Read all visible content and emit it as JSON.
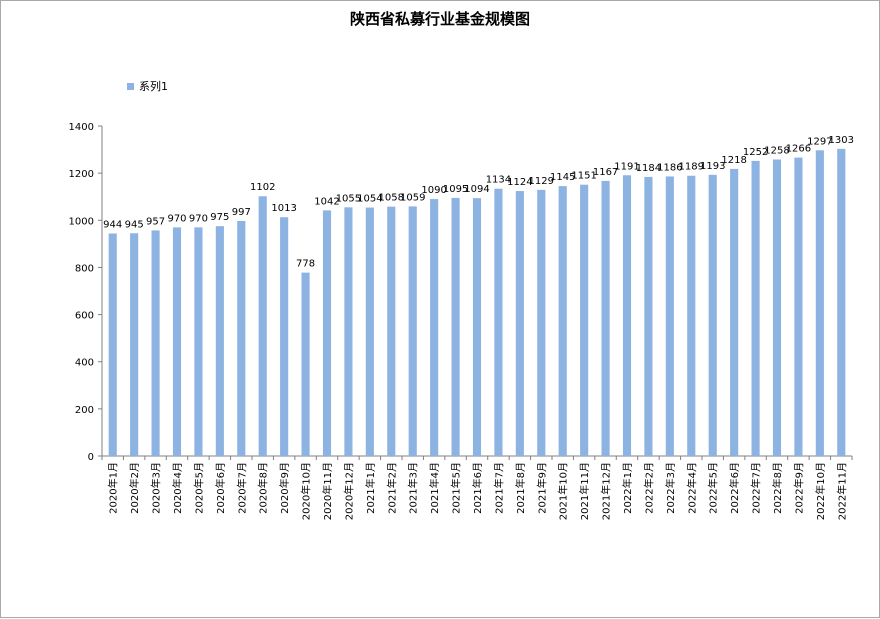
{
  "chart_data": {
    "type": "bar",
    "title": "陕西省私募行业基金规模图",
    "xlabel": "",
    "ylabel": "",
    "ylim": [
      0,
      1400
    ],
    "yticks": [
      0,
      200,
      400,
      600,
      800,
      1000,
      1200,
      1400
    ],
    "grid": false,
    "legend_position": "top-left",
    "bar_color": "#8db3e2",
    "categories": [
      "2020年1月",
      "2020年2月",
      "2020年3月",
      "2020年4月",
      "2020年5月",
      "2020年6月",
      "2020年7月",
      "2020年8月",
      "2020年9月",
      "2020年10月",
      "2020年11月",
      "2020年12月",
      "2021年1月",
      "2021年2月",
      "2021年3月",
      "2021年4月",
      "2021年5月",
      "2021年6月",
      "2021年7月",
      "2021年8月",
      "2021年9月",
      "2021年10月",
      "2021年11月",
      "2021年12月",
      "2022年1月",
      "2022年2月",
      "2022年3月",
      "2022年4月",
      "2022年5月",
      "2022年6月",
      "2022年7月",
      "2022年8月",
      "2022年9月",
      "2022年10月",
      "2022年11月"
    ],
    "series": [
      {
        "name": "系列1",
        "values": [
          944,
          945,
          957,
          970,
          970,
          975,
          997,
          1102,
          1013,
          778,
          1042,
          1055,
          1054,
          1058,
          1059,
          1090,
          1095,
          1094,
          1134,
          1124,
          1129,
          1145,
          1151,
          1167,
          1191,
          1184,
          1186,
          1189,
          1193,
          1218,
          1252,
          1258,
          1266,
          1297,
          1303
        ]
      }
    ]
  }
}
